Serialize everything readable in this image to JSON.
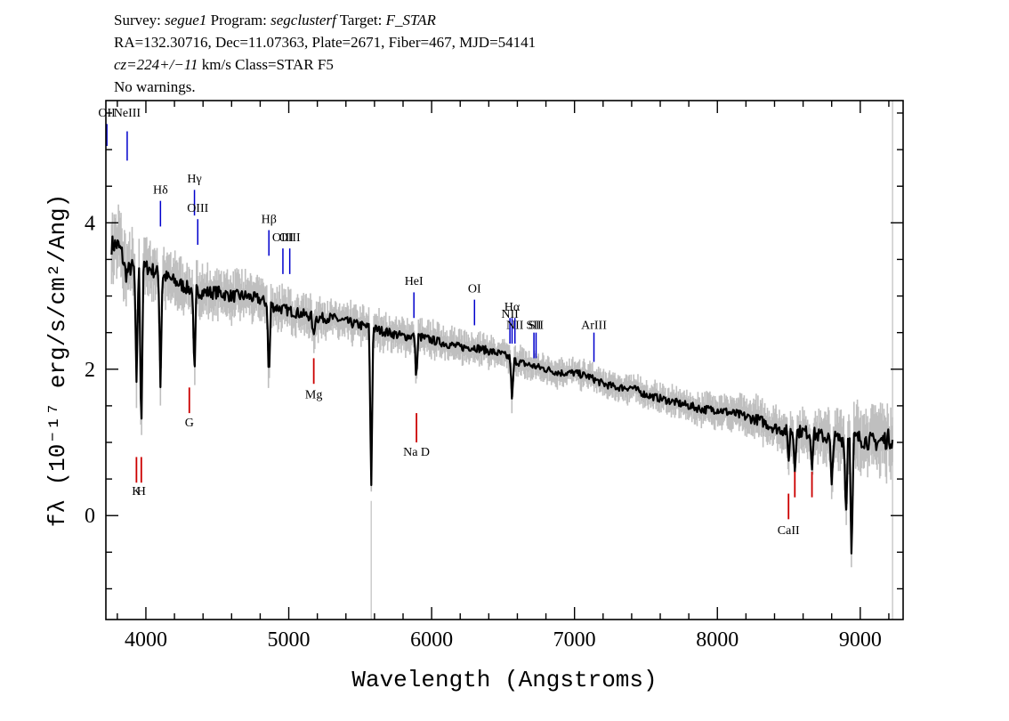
{
  "header": {
    "line1": {
      "survey_label": "Survey: ",
      "survey": "segue1",
      "program_label": " Program: ",
      "program": "segclusterf",
      "target_label": " Target: ",
      "target": "F_STAR"
    },
    "line2": "RA=132.30716, Dec=11.07363, Plate=2671, Fiber=467, MJD=54141",
    "line3": {
      "cz": "cz=224+/−11",
      "rest": " km/s Class=STAR F5"
    },
    "line4": "No warnings."
  },
  "chart_data": {
    "type": "line",
    "xlabel": "Wavelength (Angstroms)",
    "ylabel": "fλ (10⁻¹⁷ erg/s/cm²/Ang)",
    "xlim": [
      3720,
      9300
    ],
    "ylim": [
      -1.42,
      5.67
    ],
    "x_ticks": [
      4000,
      5000,
      6000,
      7000,
      8000,
      9000
    ],
    "y_ticks": [
      0,
      2,
      4
    ],
    "x_minor_step": 200,
    "y_minor_step": 0.5,
    "grid": false,
    "series": [
      {
        "role": "flux",
        "color": "#000000",
        "x": [
          3800,
          3830,
          3860,
          3900,
          3950,
          4000,
          4100,
          4200,
          4300,
          4400,
          4500,
          4600,
          4700,
          4800,
          4900,
          5000,
          5100,
          5200,
          5300,
          5400,
          5500,
          5600,
          5700,
          5800,
          5900,
          6000,
          6100,
          6200,
          6300,
          6400,
          6500,
          6600,
          6700,
          6800,
          6900,
          7000,
          7100,
          7200,
          7300,
          7400,
          7500,
          7600,
          7700,
          7800,
          7900,
          8000,
          8100,
          8200,
          8300,
          8400,
          8500,
          8600,
          8700,
          8800,
          8900,
          9000,
          9100,
          9200
        ],
        "y": [
          3.7,
          3.6,
          3.3,
          3.4,
          3.3,
          3.4,
          3.3,
          3.2,
          3.1,
          3.05,
          3.05,
          3.0,
          3.0,
          2.95,
          2.85,
          2.8,
          2.75,
          2.7,
          2.7,
          2.65,
          2.6,
          2.55,
          2.5,
          2.45,
          2.45,
          2.4,
          2.35,
          2.3,
          2.3,
          2.25,
          2.2,
          2.1,
          2.05,
          2.0,
          1.95,
          1.95,
          1.9,
          1.8,
          1.75,
          1.75,
          1.65,
          1.6,
          1.55,
          1.5,
          1.45,
          1.45,
          1.4,
          1.35,
          1.3,
          1.2,
          1.15,
          1.15,
          1.1,
          1.05,
          1.05,
          1.05,
          1.0,
          1.05
        ]
      },
      {
        "role": "noise-band",
        "color": "#bfbfbf",
        "x": [
          3800,
          4000,
          4500,
          5000,
          5500,
          6000,
          6500,
          7000,
          7500,
          8000,
          8500,
          9000,
          9200
        ],
        "halfwidth": [
          0.45,
          0.35,
          0.3,
          0.25,
          0.22,
          0.2,
          0.18,
          0.17,
          0.17,
          0.2,
          0.28,
          0.4,
          0.45
        ]
      }
    ],
    "absorption_features": [
      {
        "x": 3934,
        "depth": 1.6
      },
      {
        "x": 3968,
        "depth": 2.3
      },
      {
        "x": 4102,
        "depth": 1.5
      },
      {
        "x": 4340,
        "depth": 1.3
      },
      {
        "x": 4861,
        "depth": 1.1
      },
      {
        "x": 5173,
        "depth": 0.3
      },
      {
        "x": 5577,
        "depth": 2.3
      },
      {
        "x": 5893,
        "depth": 0.6
      },
      {
        "x": 6563,
        "depth": 0.6
      },
      {
        "x": 8498,
        "depth": 0.4
      },
      {
        "x": 8542,
        "depth": 0.5
      },
      {
        "x": 8662,
        "depth": 0.4
      },
      {
        "x": 8800,
        "depth": 0.7
      },
      {
        "x": 8900,
        "depth": 1.1
      },
      {
        "x": 8940,
        "depth": 1.7
      }
    ],
    "emission_lines": [
      {
        "label": "OII",
        "x": 3727,
        "y": 5.05,
        "y2": 5.35,
        "label_y": 5.45
      },
      {
        "label": "NeIII",
        "x": 3869,
        "y": 4.85,
        "y2": 5.25,
        "label_y": 5.45
      },
      {
        "label": "Hδ",
        "x": 4102,
        "y": 3.95,
        "y2": 4.3,
        "label_y": 4.4
      },
      {
        "label": "Hγ",
        "x": 4340,
        "y": 4.1,
        "y2": 4.45,
        "label_y": 4.55
      },
      {
        "label": "OIII",
        "x": 4363,
        "y": 3.7,
        "y2": 4.05,
        "label_y": 4.15
      },
      {
        "label": "Hβ",
        "x": 4861,
        "y": 3.55,
        "y2": 3.9,
        "label_y": 4.0
      },
      {
        "label": "OIII",
        "x": 4959,
        "y": 3.3,
        "y2": 3.65,
        "label_y": 3.75
      },
      {
        "label": "OIII",
        "x": 5007,
        "y": 3.3,
        "y2": 3.65,
        "label_y": 3.75
      },
      {
        "label": "HeI",
        "x": 5876,
        "y": 2.7,
        "y2": 3.05,
        "label_y": 3.15
      },
      {
        "label": "OI",
        "x": 6300,
        "y": 2.6,
        "y2": 2.95,
        "label_y": 3.05
      },
      {
        "label": "NII",
        "x": 6548,
        "y": 2.35,
        "y2": 2.7,
        "label_y": 2.7
      },
      {
        "label": "Hα",
        "x": 6563,
        "y": 2.35,
        "y2": 2.7,
        "label_y": 2.8
      },
      {
        "label": "NII",
        "x": 6583,
        "y": 2.35,
        "y2": 2.7,
        "label_y": 2.55
      },
      {
        "label": "SII",
        "x": 6716,
        "y": 2.15,
        "y2": 2.5,
        "label_y": 2.55
      },
      {
        "label": "SII",
        "x": 6731,
        "y": 2.15,
        "y2": 2.5,
        "label_y": 2.55
      },
      {
        "label": "ArIII",
        "x": 7136,
        "y": 2.1,
        "y2": 2.5,
        "label_y": 2.55
      }
    ],
    "absorption_lines": [
      {
        "label": "K",
        "x": 3934,
        "y": 0.8,
        "y2": 0.45,
        "label_y": 0.28
      },
      {
        "label": "H",
        "x": 3968,
        "y": 0.8,
        "y2": 0.45,
        "label_y": 0.28
      },
      {
        "label": "G",
        "x": 4304,
        "y": 1.75,
        "y2": 1.4,
        "label_y": 1.22
      },
      {
        "label": "Mg",
        "x": 5175,
        "y": 2.15,
        "y2": 1.8,
        "label_y": 1.6
      },
      {
        "label": "Na D",
        "x": 5894,
        "y": 1.4,
        "y2": 1.0,
        "label_y": 0.82
      },
      {
        "label": "CaII",
        "x": 8498,
        "y": 0.3,
        "y2": -0.05,
        "label_y": -0.25
      },
      {
        "label": "",
        "x": 8542,
        "y": 0.6,
        "y2": 0.25
      },
      {
        "label": "",
        "x": 8662,
        "y": 0.6,
        "y2": 0.25
      }
    ],
    "emission_color": "#0000cc",
    "absorption_color": "#cc0000"
  }
}
